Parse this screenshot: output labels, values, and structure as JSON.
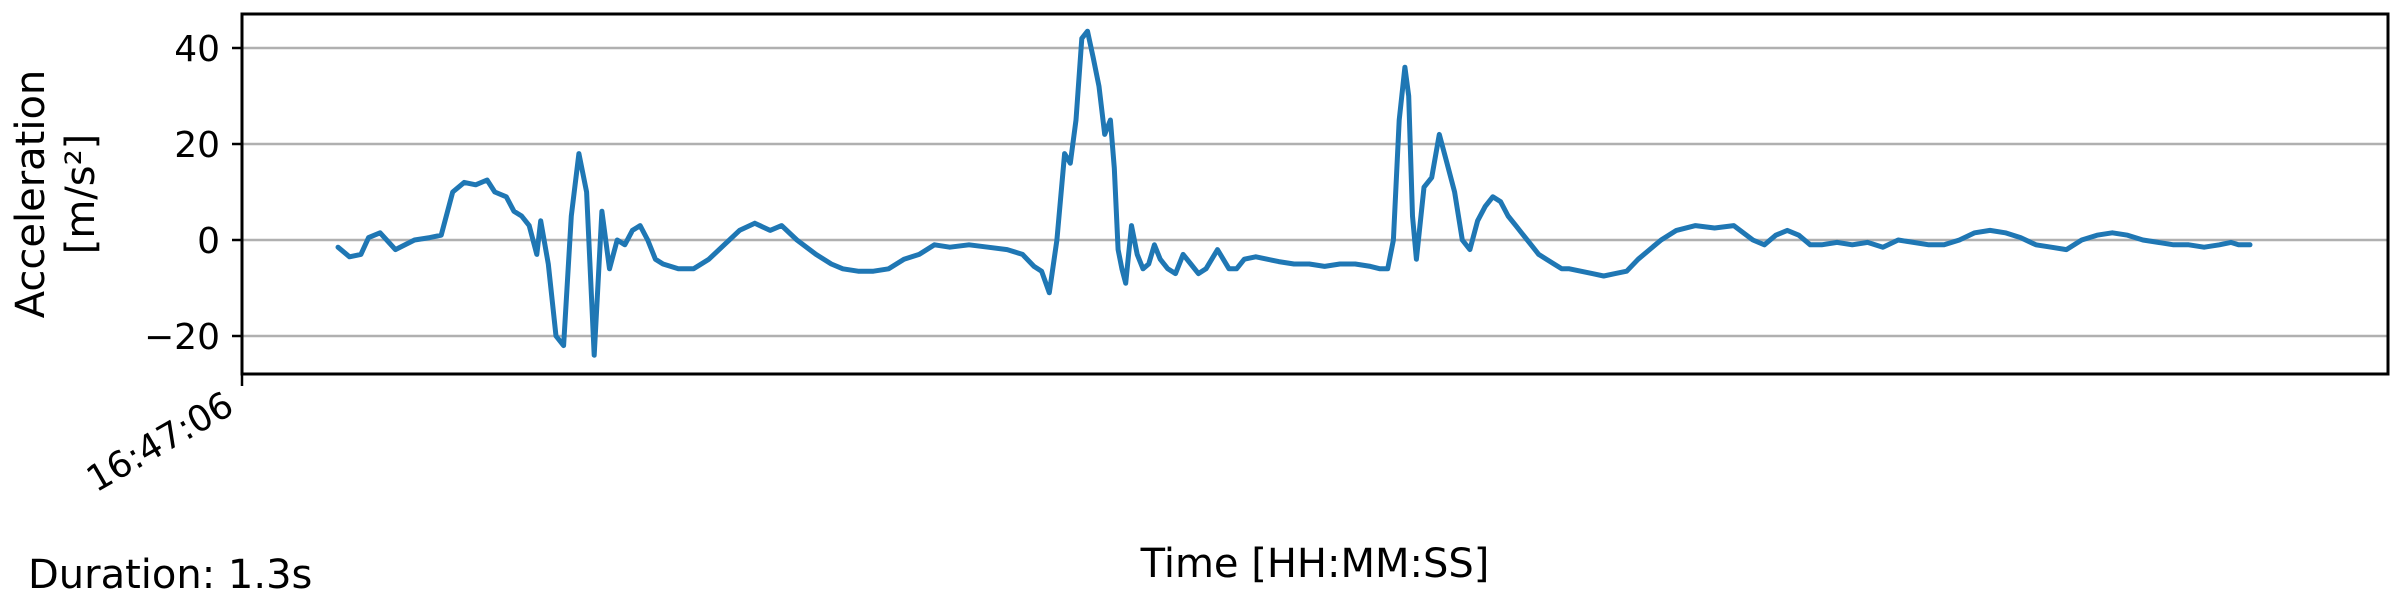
{
  "chart_data": {
    "type": "line",
    "title": "",
    "xlabel": "Time [HH:MM:SS]",
    "ylabel_line1": "Acceleration",
    "ylabel_line2": "[m/s²]",
    "x_tick_labels": [
      "16:47:06"
    ],
    "y_ticks": [
      -20,
      0,
      20,
      40
    ],
    "y_tick_labels": [
      "−20",
      "0",
      "20",
      "40"
    ],
    "ylim": [
      -28,
      47.5
    ],
    "grid": "horizontal",
    "line_color": "#1f77b4",
    "series": [
      {
        "x_unit": "sample",
        "x_max": 1000,
        "points": [
          [
            0,
            -1.5
          ],
          [
            6,
            -3.5
          ],
          [
            12,
            -3
          ],
          [
            16,
            0.5
          ],
          [
            22,
            1.5
          ],
          [
            30,
            -2
          ],
          [
            40,
            0
          ],
          [
            48,
            0.5
          ],
          [
            54,
            1
          ],
          [
            60,
            10
          ],
          [
            66,
            12
          ],
          [
            72,
            11.5
          ],
          [
            78,
            12.5
          ],
          [
            82,
            10
          ],
          [
            88,
            9
          ],
          [
            92,
            6
          ],
          [
            96,
            5
          ],
          [
            100,
            3
          ],
          [
            104,
            -3
          ],
          [
            106,
            4
          ],
          [
            110,
            -5
          ],
          [
            114,
            -20
          ],
          [
            118,
            -22
          ],
          [
            122,
            5
          ],
          [
            126,
            18
          ],
          [
            130,
            10
          ],
          [
            134,
            -24
          ],
          [
            138,
            6
          ],
          [
            142,
            -6
          ],
          [
            146,
            0
          ],
          [
            150,
            -1
          ],
          [
            154,
            2
          ],
          [
            158,
            3
          ],
          [
            162,
            0
          ],
          [
            166,
            -4
          ],
          [
            170,
            -5
          ],
          [
            174,
            -5.5
          ],
          [
            178,
            -6
          ],
          [
            186,
            -6
          ],
          [
            194,
            -4
          ],
          [
            202,
            -1
          ],
          [
            210,
            2
          ],
          [
            218,
            3.5
          ],
          [
            226,
            2
          ],
          [
            232,
            3
          ],
          [
            240,
            0
          ],
          [
            250,
            -3
          ],
          [
            258,
            -5
          ],
          [
            264,
            -6
          ],
          [
            272,
            -6.5
          ],
          [
            280,
            -6.5
          ],
          [
            288,
            -6
          ],
          [
            296,
            -4
          ],
          [
            304,
            -3
          ],
          [
            312,
            -1
          ],
          [
            320,
            -1.5
          ],
          [
            330,
            -1
          ],
          [
            340,
            -1.5
          ],
          [
            350,
            -2
          ],
          [
            358,
            -3
          ],
          [
            364,
            -5.5
          ],
          [
            368,
            -6.5
          ],
          [
            372,
            -11
          ],
          [
            376,
            0
          ],
          [
            380,
            18
          ],
          [
            383,
            16
          ],
          [
            386,
            25
          ],
          [
            389,
            42
          ],
          [
            392,
            43.5
          ],
          [
            395,
            38
          ],
          [
            398,
            32
          ],
          [
            401,
            22
          ],
          [
            404,
            25
          ],
          [
            406,
            15
          ],
          [
            408,
            -2
          ],
          [
            410,
            -6
          ],
          [
            412,
            -9
          ],
          [
            415,
            3
          ],
          [
            418,
            -3
          ],
          [
            421,
            -6
          ],
          [
            424,
            -5
          ],
          [
            427,
            -1
          ],
          [
            430,
            -4
          ],
          [
            434,
            -6
          ],
          [
            438,
            -7
          ],
          [
            442,
            -3
          ],
          [
            446,
            -5
          ],
          [
            450,
            -7
          ],
          [
            454,
            -6
          ],
          [
            460,
            -2
          ],
          [
            466,
            -6
          ],
          [
            470,
            -6
          ],
          [
            474,
            -4
          ],
          [
            480,
            -3.5
          ],
          [
            486,
            -4
          ],
          [
            492,
            -4.5
          ],
          [
            500,
            -5
          ],
          [
            508,
            -5
          ],
          [
            516,
            -5.5
          ],
          [
            524,
            -5
          ],
          [
            532,
            -5
          ],
          [
            540,
            -5.5
          ],
          [
            545,
            -6
          ],
          [
            549,
            -6
          ],
          [
            552,
            0
          ],
          [
            555,
            25
          ],
          [
            558,
            36
          ],
          [
            560,
            30
          ],
          [
            562,
            5
          ],
          [
            564,
            -4
          ],
          [
            568,
            11
          ],
          [
            572,
            13
          ],
          [
            576,
            22
          ],
          [
            580,
            16
          ],
          [
            584,
            10
          ],
          [
            588,
            0
          ],
          [
            592,
            -2
          ],
          [
            596,
            4
          ],
          [
            600,
            7
          ],
          [
            604,
            9
          ],
          [
            608,
            8
          ],
          [
            612,
            5
          ],
          [
            616,
            3
          ],
          [
            620,
            1
          ],
          [
            624,
            -1
          ],
          [
            628,
            -3
          ],
          [
            632,
            -4
          ],
          [
            636,
            -5
          ],
          [
            640,
            -6
          ],
          [
            644,
            -6
          ],
          [
            650,
            -6.5
          ],
          [
            656,
            -7
          ],
          [
            662,
            -7.5
          ],
          [
            668,
            -7
          ],
          [
            674,
            -6.5
          ],
          [
            680,
            -4
          ],
          [
            686,
            -2
          ],
          [
            692,
            0
          ],
          [
            700,
            2
          ],
          [
            710,
            3
          ],
          [
            720,
            2.5
          ],
          [
            730,
            3
          ],
          [
            740,
            0
          ],
          [
            746,
            -1
          ],
          [
            752,
            1
          ],
          [
            758,
            2
          ],
          [
            764,
            1
          ],
          [
            770,
            -1
          ],
          [
            776,
            -1
          ],
          [
            784,
            -0.5
          ],
          [
            792,
            -1
          ],
          [
            800,
            -0.5
          ],
          [
            808,
            -1.5
          ],
          [
            816,
            0
          ],
          [
            824,
            -0.5
          ],
          [
            832,
            -1
          ],
          [
            840,
            -1
          ],
          [
            848,
            0
          ],
          [
            856,
            1.5
          ],
          [
            864,
            2
          ],
          [
            872,
            1.5
          ],
          [
            880,
            0.5
          ],
          [
            888,
            -1
          ],
          [
            896,
            -1.5
          ],
          [
            904,
            -2
          ],
          [
            912,
            0
          ],
          [
            920,
            1
          ],
          [
            928,
            1.5
          ],
          [
            936,
            1
          ],
          [
            944,
            0
          ],
          [
            952,
            -0.5
          ],
          [
            960,
            -1
          ],
          [
            968,
            -1
          ],
          [
            976,
            -1.5
          ],
          [
            984,
            -1
          ],
          [
            990,
            -0.5
          ],
          [
            994,
            -1
          ],
          [
            1000,
            -1
          ]
        ]
      }
    ]
  },
  "footer": {
    "duration_label": "Duration: 1.3s"
  }
}
